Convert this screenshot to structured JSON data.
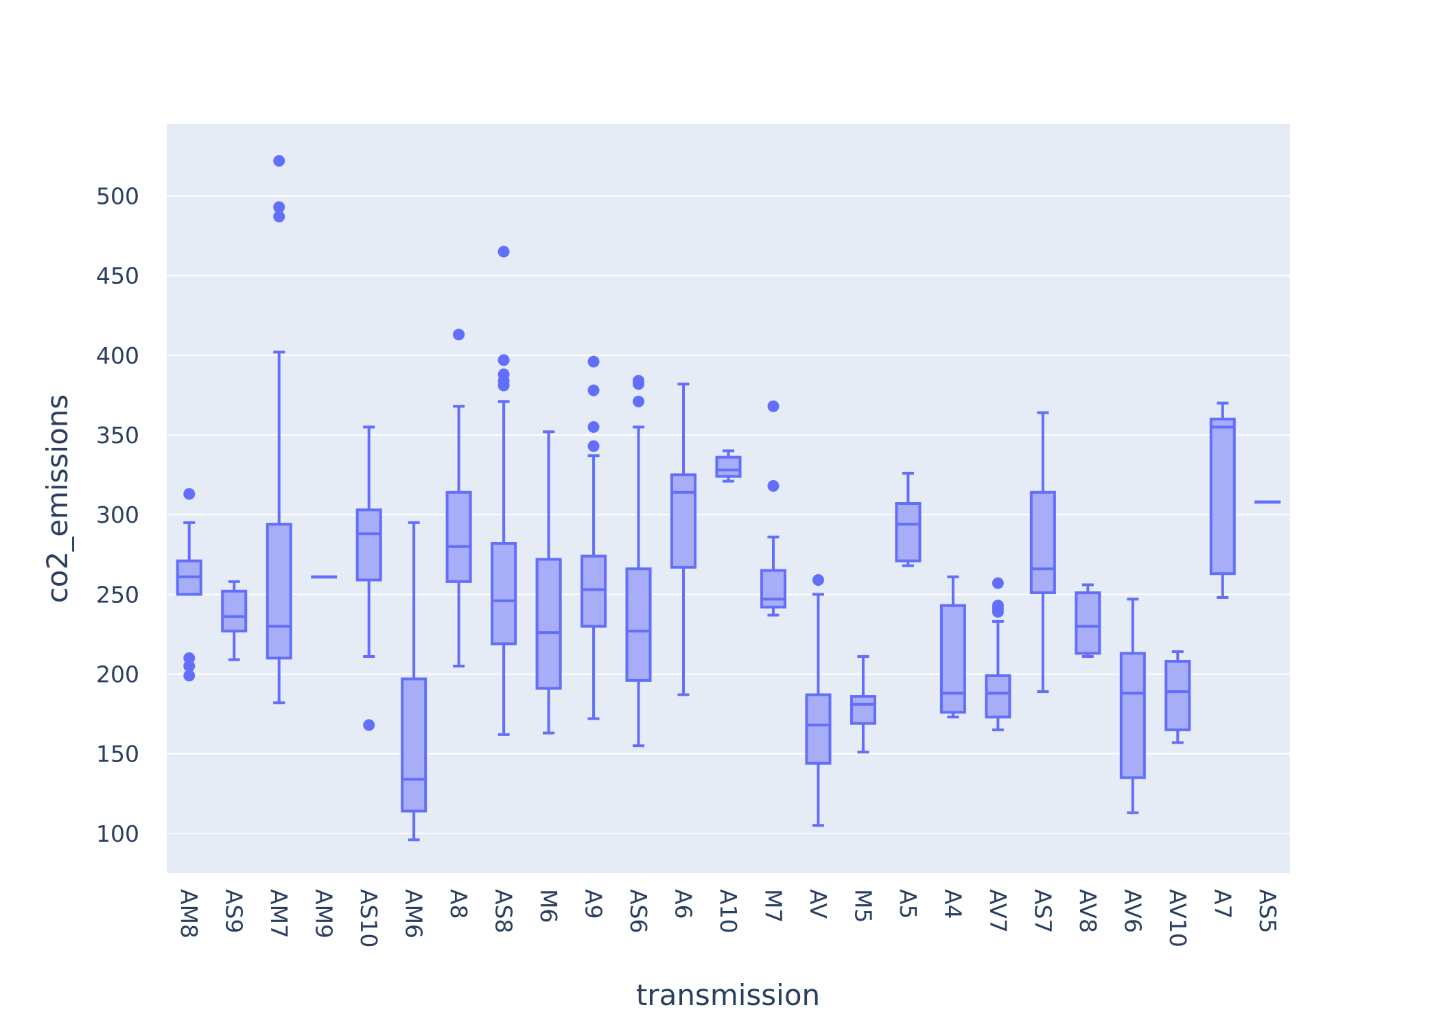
{
  "chart_data": {
    "type": "box",
    "xlabel": "transmission",
    "ylabel": "co2_emissions",
    "ylim": [
      75,
      545
    ],
    "yticks": [
      100,
      150,
      200,
      250,
      300,
      350,
      400,
      450,
      500
    ],
    "grid": "horizontal",
    "legend": "none",
    "colors": {
      "plot_bg": "#E5ECF6",
      "box_line": "#636EFA",
      "box_fill": "#A7ADF6",
      "grid": "#FFFFFF",
      "text": "#2A3F5F"
    },
    "categories": [
      "AM8",
      "AS9",
      "AM7",
      "AM9",
      "AS10",
      "AM6",
      "A8",
      "AS8",
      "M6",
      "A9",
      "AS6",
      "A6",
      "A10",
      "M7",
      "AV",
      "M5",
      "A5",
      "A4",
      "AV7",
      "AS7",
      "AV8",
      "AV6",
      "AV10",
      "A7",
      "AS5"
    ],
    "boxes": [
      {
        "category": "AM8",
        "min": 250,
        "q1": 250,
        "median": 261,
        "q3": 271,
        "max": 295,
        "outliers": [
          313,
          210,
          205,
          199
        ]
      },
      {
        "category": "AS9",
        "min": 209,
        "q1": 227,
        "median": 236,
        "q3": 252,
        "max": 258,
        "outliers": []
      },
      {
        "category": "AM7",
        "min": 182,
        "q1": 210,
        "median": 230,
        "q3": 294,
        "max": 402,
        "outliers": [
          522,
          493,
          487
        ]
      },
      {
        "category": "AM9",
        "min": 261,
        "q1": 261,
        "median": 261,
        "q3": 261,
        "max": 261,
        "outliers": []
      },
      {
        "category": "AS10",
        "min": 211,
        "q1": 259,
        "median": 288,
        "q3": 303,
        "max": 355,
        "outliers": [
          168
        ]
      },
      {
        "category": "AM6",
        "min": 96,
        "q1": 114,
        "median": 134,
        "q3": 197,
        "max": 295,
        "outliers": []
      },
      {
        "category": "A8",
        "min": 205,
        "q1": 258,
        "median": 280,
        "q3": 314,
        "max": 368,
        "outliers": [
          413
        ]
      },
      {
        "category": "AS8",
        "min": 162,
        "q1": 219,
        "median": 246,
        "q3": 282,
        "max": 371,
        "outliers": [
          465,
          397,
          388,
          384,
          381
        ]
      },
      {
        "category": "M6",
        "min": 163,
        "q1": 191,
        "median": 226,
        "q3": 272,
        "max": 352,
        "outliers": []
      },
      {
        "category": "A9",
        "min": 172,
        "q1": 230,
        "median": 253,
        "q3": 274,
        "max": 337,
        "outliers": [
          396,
          378,
          355,
          343
        ]
      },
      {
        "category": "AS6",
        "min": 155,
        "q1": 196,
        "median": 227,
        "q3": 266,
        "max": 355,
        "outliers": [
          384,
          382,
          371
        ]
      },
      {
        "category": "A6",
        "min": 187,
        "q1": 267,
        "median": 314,
        "q3": 325,
        "max": 382,
        "outliers": []
      },
      {
        "category": "A10",
        "min": 321,
        "q1": 324,
        "median": 328,
        "q3": 336,
        "max": 340,
        "outliers": []
      },
      {
        "category": "M7",
        "min": 237,
        "q1": 242,
        "median": 247,
        "q3": 265,
        "max": 286,
        "outliers": [
          368,
          318
        ]
      },
      {
        "category": "AV",
        "min": 105,
        "q1": 144,
        "median": 168,
        "q3": 187,
        "max": 250,
        "outliers": [
          259
        ]
      },
      {
        "category": "M5",
        "min": 151,
        "q1": 169,
        "median": 181,
        "q3": 186,
        "max": 211,
        "outliers": []
      },
      {
        "category": "A5",
        "min": 268,
        "q1": 271,
        "median": 294,
        "q3": 307,
        "max": 326,
        "outliers": []
      },
      {
        "category": "A4",
        "min": 173,
        "q1": 176,
        "median": 188,
        "q3": 243,
        "max": 261,
        "outliers": []
      },
      {
        "category": "AV7",
        "min": 165,
        "q1": 173,
        "median": 188,
        "q3": 199,
        "max": 233,
        "outliers": [
          257,
          243,
          241,
          239
        ]
      },
      {
        "category": "AS7",
        "min": 189,
        "q1": 251,
        "median": 266,
        "q3": 314,
        "max": 364,
        "outliers": []
      },
      {
        "category": "AV8",
        "min": 211,
        "q1": 213,
        "median": 230,
        "q3": 251,
        "max": 256,
        "outliers": []
      },
      {
        "category": "AV6",
        "min": 113,
        "q1": 135,
        "median": 188,
        "q3": 213,
        "max": 247,
        "outliers": []
      },
      {
        "category": "AV10",
        "min": 157,
        "q1": 165,
        "median": 189,
        "q3": 208,
        "max": 214,
        "outliers": []
      },
      {
        "category": "A7",
        "min": 248,
        "q1": 263,
        "median": 355,
        "q3": 360,
        "max": 370,
        "outliers": []
      },
      {
        "category": "AS5",
        "min": 308,
        "q1": 308,
        "median": 308,
        "q3": 308,
        "max": 308,
        "outliers": []
      }
    ]
  }
}
